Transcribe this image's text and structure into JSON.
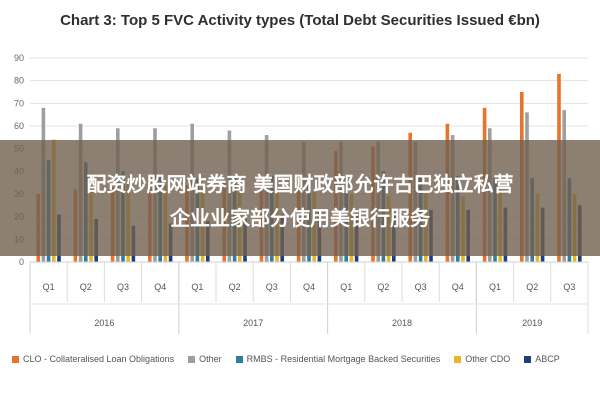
{
  "title": "Chart 3: Top 5 FVC Activity types (Total Debt Securities Issued €bn)",
  "banner": {
    "line1": "配资炒股网站券商 美国财政部允许古巴独立私营",
    "line2": "企业业家部分使用美银行服务"
  },
  "chart_data": {
    "type": "bar",
    "title": "Chart 3: Top 5 FVC Activity types (Total Debt Securities Issued €bn)",
    "ylim": [
      0,
      90
    ],
    "yticks": [
      "0",
      "10",
      "20",
      "30",
      "40",
      "50",
      "60",
      "70",
      "80",
      "90"
    ],
    "grid": true,
    "legend_position": "bottom",
    "categories": [
      "Q1",
      "Q2",
      "Q3",
      "Q4",
      "Q1",
      "Q2",
      "Q3",
      "Q4",
      "Q1",
      "Q2",
      "Q3",
      "Q4",
      "Q1",
      "Q2",
      "Q3"
    ],
    "groups": [
      {
        "label": "2016",
        "count": 4
      },
      {
        "label": "2017",
        "count": 4
      },
      {
        "label": "2018",
        "count": 4
      },
      {
        "label": "2019",
        "count": 3
      }
    ],
    "series": [
      {
        "name": "CLO - Collateralised Loan Obligations",
        "color": "#e8732a",
        "values": [
          30,
          32,
          33,
          33,
          34,
          35,
          36,
          37,
          49,
          51,
          57,
          61,
          68,
          75,
          83
        ]
      },
      {
        "name": "Other",
        "color": "#9e9e9e",
        "values": [
          68,
          61,
          59,
          59,
          61,
          58,
          56,
          53,
          53,
          53,
          53,
          56,
          59,
          66,
          67
        ]
      },
      {
        "name": "RMBS - Residential Mortgage Backed Securities",
        "color": "#2f7fa0",
        "values": [
          45,
          44,
          40,
          38,
          37,
          37,
          38,
          38,
          38,
          40,
          38,
          38,
          37,
          37,
          37
        ]
      },
      {
        "name": "Other CDO",
        "color": "#e8b626",
        "values": [
          54,
          39,
          36,
          34,
          33,
          32,
          32,
          31,
          30,
          29,
          30,
          29,
          32,
          30,
          30
        ]
      },
      {
        "name": "ABCP",
        "color": "#1f3f7a",
        "values": [
          21,
          19,
          16,
          17,
          18,
          19,
          21,
          22,
          22,
          22,
          23,
          23,
          24,
          24,
          25
        ]
      }
    ]
  }
}
